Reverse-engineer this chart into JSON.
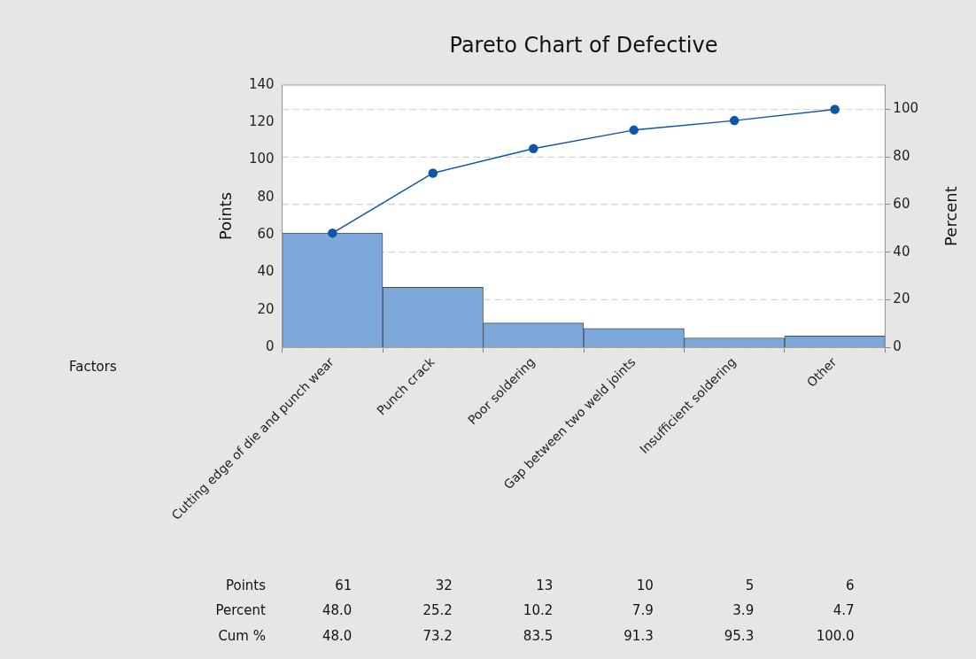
{
  "chart_data": {
    "type": "bar",
    "title": "Pareto Chart of Defective",
    "xlabel": "Factors",
    "ylabel": "Points",
    "y2label": "Percent",
    "categories": [
      "Cutting edge of die and punch wear",
      "Punch crack",
      "Poor soldering",
      "Gap between two weld joints",
      "Insufficient soldering",
      "Other"
    ],
    "series": [
      {
        "color": "#7ba7d9",
        "values": [
          61,
          32,
          13,
          10,
          5,
          6
        ],
        "value_labels": [
          "61",
          "32",
          "13",
          "10",
          "5",
          "6"
        ]
      },
      {
        "type": "line",
        "axis": "y2",
        "color": "#0f56a8",
        "marker": "circle",
        "values": [
          48.0,
          73.2,
          83.5,
          91.3,
          95.3,
          100.0
        ],
        "value_labels": [
          "48.0",
          "73.2",
          "83.5",
          "91.3",
          "95.3",
          "100.0"
        ]
      }
    ],
    "annotations": [
      "Points",
      "Percent",
      "Cum %",
      "48.0",
      "25.2",
      "10.2",
      "7.9",
      "3.9",
      "4.7"
    ],
    "ylim": [
      0,
      140
    ],
    "yticks": [
      0,
      20,
      40,
      60,
      80,
      100,
      120,
      140
    ],
    "y2lim": [
      0,
      110.24
    ],
    "y2ticks": [
      0,
      20,
      40,
      60,
      80,
      100
    ],
    "grid": "y2",
    "legend": false
  }
}
